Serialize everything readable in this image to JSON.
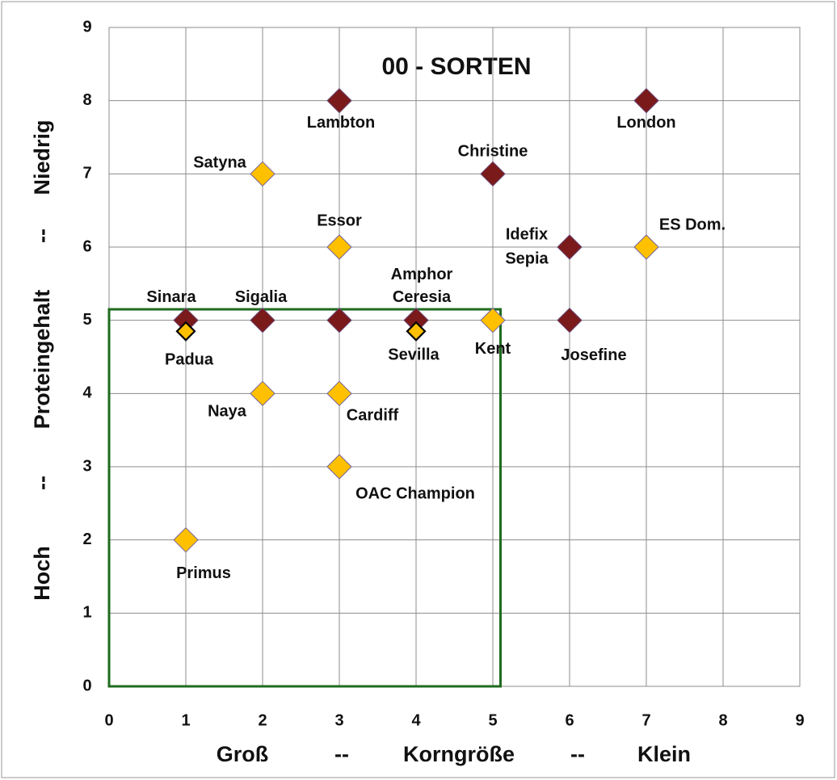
{
  "chart_data": {
    "type": "scatter",
    "title": "00 - SORTEN",
    "x_label_parts": [
      "Groß",
      "--",
      "Korngröße",
      "--",
      "Klein"
    ],
    "y_label_parts": [
      "Hoch",
      "--",
      "Proteingehalt",
      "--",
      "Niedrig"
    ],
    "xlim": [
      0,
      9
    ],
    "ylim": [
      0,
      9
    ],
    "xticks": [
      0,
      1,
      2,
      3,
      4,
      5,
      6,
      7,
      8,
      9
    ],
    "yticks": [
      0,
      1,
      2,
      3,
      4,
      5,
      6,
      7,
      8,
      9
    ],
    "grid": true,
    "highlight": {
      "x": [
        0,
        5.1
      ],
      "y": [
        0,
        5.15
      ],
      "color": "#1e6b1e"
    },
    "series": [
      {
        "color": "#7a1a1a",
        "marker_size": 15,
        "x": [
          3,
          7,
          5,
          6,
          6,
          1,
          2,
          3,
          4
        ],
        "values": [
          8,
          8,
          7,
          6,
          5,
          5,
          5,
          5,
          5
        ],
        "labels": [
          "Lambton",
          "London",
          "Christine",
          [
            "Idefix",
            "Sepia"
          ],
          "Josefine",
          "Sinara",
          "Sigalia",
          null,
          [
            "Amphor",
            "Ceresia"
          ]
        ]
      },
      {
        "color": "#ffc000",
        "marker_size": 15,
        "x": [
          2,
          3,
          7,
          5,
          2,
          3,
          3,
          1
        ],
        "values": [
          7,
          6,
          6,
          5,
          4,
          4,
          3,
          2
        ],
        "labels": [
          "Satyna",
          "Essor",
          "ES Dom.",
          "Kent",
          "Naya",
          "Cardiff",
          "OAC Champion",
          "Primus"
        ]
      },
      {
        "color": "#ffc000",
        "marker_size": 11,
        "x": [
          1,
          4
        ],
        "values": [
          4.85,
          4.85
        ],
        "labels": [
          "Padua",
          "Sevilla"
        ]
      }
    ]
  }
}
